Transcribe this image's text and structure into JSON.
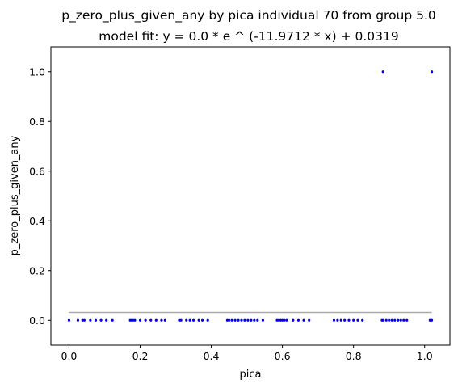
{
  "chart_data": {
    "type": "scatter",
    "title": "p_zero_plus_given_any by pica individual 70 from group 5.0",
    "subtitle": "model fit: y = 0.0 * e ^ (-11.9712 * x) + 0.0319",
    "xlabel": "pica",
    "ylabel": "p_zero_plus_given_any",
    "xlim": [
      -0.051,
      1.071
    ],
    "ylim": [
      -0.1,
      1.1
    ],
    "x_ticks": [
      "0.0",
      "0.2",
      "0.4",
      "0.6",
      "0.8",
      "1.0"
    ],
    "x_tick_values": [
      0.0,
      0.2,
      0.4,
      0.6,
      0.8,
      1.0
    ],
    "y_ticks": [
      "0.0",
      "0.2",
      "0.4",
      "0.6",
      "0.8",
      "1.0"
    ],
    "y_tick_values": [
      0.0,
      0.2,
      0.4,
      0.6,
      0.8,
      1.0
    ],
    "grid": false,
    "series": [
      {
        "kind": "scatter",
        "color": "#0000ff",
        "points": [
          [
            0.0,
            0.0
          ],
          [
            0.025,
            0.0
          ],
          [
            0.038,
            0.0
          ],
          [
            0.043,
            0.0
          ],
          [
            0.06,
            0.0
          ],
          [
            0.075,
            0.0
          ],
          [
            0.09,
            0.0
          ],
          [
            0.105,
            0.0
          ],
          [
            0.122,
            0.0
          ],
          [
            0.172,
            0.0
          ],
          [
            0.176,
            0.0
          ],
          [
            0.18,
            0.0
          ],
          [
            0.185,
            0.0
          ],
          [
            0.2,
            0.0
          ],
          [
            0.215,
            0.0
          ],
          [
            0.23,
            0.0
          ],
          [
            0.245,
            0.0
          ],
          [
            0.26,
            0.0
          ],
          [
            0.27,
            0.0
          ],
          [
            0.31,
            0.0
          ],
          [
            0.315,
            0.0
          ],
          [
            0.33,
            0.0
          ],
          [
            0.34,
            0.0
          ],
          [
            0.35,
            0.0
          ],
          [
            0.365,
            0.0
          ],
          [
            0.375,
            0.0
          ],
          [
            0.39,
            0.0
          ],
          [
            0.445,
            0.0
          ],
          [
            0.45,
            0.0
          ],
          [
            0.458,
            0.0
          ],
          [
            0.467,
            0.0
          ],
          [
            0.476,
            0.0
          ],
          [
            0.485,
            0.0
          ],
          [
            0.494,
            0.0
          ],
          [
            0.503,
            0.0
          ],
          [
            0.512,
            0.0
          ],
          [
            0.521,
            0.0
          ],
          [
            0.53,
            0.0
          ],
          [
            0.545,
            0.0
          ],
          [
            0.585,
            0.0
          ],
          [
            0.59,
            0.0
          ],
          [
            0.595,
            0.0
          ],
          [
            0.6,
            0.0
          ],
          [
            0.605,
            0.0
          ],
          [
            0.612,
            0.0
          ],
          [
            0.63,
            0.0
          ],
          [
            0.645,
            0.0
          ],
          [
            0.66,
            0.0
          ],
          [
            0.675,
            0.0
          ],
          [
            0.745,
            0.0
          ],
          [
            0.755,
            0.0
          ],
          [
            0.765,
            0.0
          ],
          [
            0.775,
            0.0
          ],
          [
            0.787,
            0.0
          ],
          [
            0.8,
            0.0
          ],
          [
            0.812,
            0.0
          ],
          [
            0.825,
            0.0
          ],
          [
            0.88,
            0.0
          ],
          [
            0.883,
            0.0
          ],
          [
            0.892,
            0.0
          ],
          [
            0.9,
            0.0
          ],
          [
            0.908,
            0.0
          ],
          [
            0.916,
            0.0
          ],
          [
            0.925,
            0.0
          ],
          [
            0.933,
            0.0
          ],
          [
            0.941,
            0.0
          ],
          [
            0.95,
            0.0
          ],
          [
            1.015,
            0.0
          ],
          [
            1.018,
            0.0
          ],
          [
            1.02,
            0.0
          ],
          [
            0.883,
            1.0
          ],
          [
            1.02,
            1.0
          ]
        ]
      },
      {
        "kind": "line",
        "color": "#aaaaaa",
        "x": [
          0.0,
          0.02,
          0.05,
          0.1,
          0.2,
          0.4,
          0.6,
          0.8,
          1.02
        ],
        "y": [
          0.0319,
          0.0319,
          0.0319,
          0.0319,
          0.0319,
          0.0319,
          0.0319,
          0.0319,
          0.0319
        ]
      }
    ]
  }
}
